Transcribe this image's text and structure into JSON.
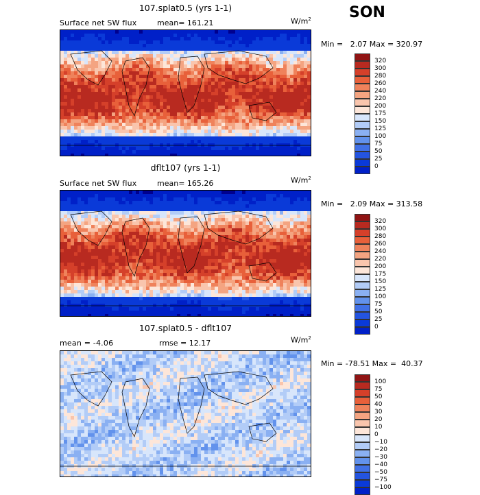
{
  "season": "SON",
  "colors": {
    "map_fill": [
      "#00008f",
      "#0020c8",
      "#0a3ad8",
      "#2454e0",
      "#4070e6",
      "#6292ec",
      "#8ab0f2",
      "#b2ccf7",
      "#d8e6fb",
      "#fde6d9",
      "#f9c5ad",
      "#f4a481",
      "#ef825b",
      "#e8603a",
      "#d5402a",
      "#b82a20",
      "#901414"
    ]
  },
  "panels": [
    {
      "title": "107.splat0.5 (yrs 1-1)",
      "left_label": "Surface net SW flux",
      "mean_label": "mean= 161.21",
      "units": "W/m",
      "units_sup": "2",
      "minmax": "Min =   2.07 Max = 320.97",
      "colorbar_labels": [
        "320",
        "300",
        "280",
        "260",
        "240",
        "220",
        "200",
        "175",
        "150",
        "125",
        "100",
        "75",
        "50",
        "25",
        "0"
      ]
    },
    {
      "title": "dflt107 (yrs 1-1)",
      "left_label": "Surface net SW flux",
      "mean_label": "mean= 165.26",
      "units": "W/m",
      "units_sup": "2",
      "minmax": "Min =   2.09 Max = 313.58",
      "colorbar_labels": [
        "320",
        "300",
        "280",
        "260",
        "240",
        "220",
        "200",
        "175",
        "150",
        "125",
        "100",
        "75",
        "50",
        "25",
        "0"
      ]
    },
    {
      "title": "107.splat0.5 - dflt107",
      "left_label": "mean =  -4.06",
      "mean_label": "rmse =  12.17",
      "units": "W/m",
      "units_sup": "2",
      "minmax": "Min = -78.51 Max =  40.37",
      "colorbar_labels": [
        "100",
        "75",
        "50",
        "40",
        "30",
        "20",
        "10",
        "0",
        "−10",
        "−20",
        "−30",
        "−40",
        "−50",
        "−75",
        "−100"
      ]
    }
  ],
  "chart_data": [
    {
      "type": "heatmap",
      "title": "107.splat0.5 (yrs 1-1)",
      "subtitle": "Surface net SW flux",
      "units": "W/m2",
      "mean": 161.21,
      "min": 2.07,
      "max": 320.97,
      "contour_levels": [
        0,
        25,
        50,
        75,
        100,
        125,
        150,
        175,
        200,
        220,
        240,
        260,
        280,
        300,
        320
      ]
    },
    {
      "type": "heatmap",
      "title": "dflt107 (yrs 1-1)",
      "subtitle": "Surface net SW flux",
      "units": "W/m2",
      "mean": 165.26,
      "min": 2.09,
      "max": 313.58,
      "contour_levels": [
        0,
        25,
        50,
        75,
        100,
        125,
        150,
        175,
        200,
        220,
        240,
        260,
        280,
        300,
        320
      ]
    },
    {
      "type": "heatmap",
      "title": "107.splat0.5 - dflt107",
      "units": "W/m2",
      "mean": -4.06,
      "rmse": 12.17,
      "min": -78.51,
      "max": 40.37,
      "contour_levels": [
        -100,
        -75,
        -50,
        -40,
        -30,
        -20,
        -10,
        0,
        10,
        20,
        30,
        40,
        50,
        75,
        100
      ]
    }
  ]
}
